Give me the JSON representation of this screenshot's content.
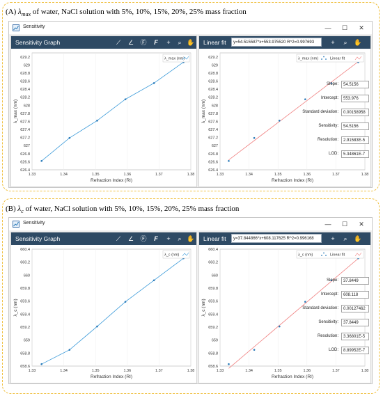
{
  "captions": {
    "a_prefix": "(A) ",
    "a_symbol": "λ",
    "a_sub": "max",
    "a_rest": " of water, NaCl solution with 5%, 10%, 15%, 20%, 25% mass fraction",
    "b_prefix": "(B) ",
    "b_symbol": "λ",
    "b_sub": "c",
    "b_rest": " of water, NaCl solution with 5%, 10%, 15%, 20%, 25% mass fraction"
  },
  "window": {
    "title": "Sensitivity",
    "minimize": "—",
    "maximize": "☐",
    "close": "✕"
  },
  "toolbar_icons": [
    "chart-line-icon",
    "chart-slope-icon",
    "function-f-icon",
    "font-f-icon",
    "crosshair-icon",
    "zoom-icon",
    "pan-hand-icon"
  ],
  "colors": {
    "header": "#2e4a64",
    "line": "#3a9ad9",
    "fit": "#f08080",
    "point": "#2a7ab8"
  },
  "chart_data": [
    {
      "type": "line",
      "panel": "A-left",
      "title": "Sensitivity Graph",
      "xlabel": "Refraction Index (RI)",
      "ylabel": "λ_max (nm)",
      "xlim": [
        1.33,
        1.38
      ],
      "ylim": [
        626.4,
        629.3
      ],
      "xticks": [
        "1.33",
        "1.34",
        "1.35",
        "1.36",
        "1.37",
        "1.38"
      ],
      "yticks": [
        "626.4",
        "626.6",
        "626.8",
        "627",
        "627.2",
        "627.4",
        "627.6",
        "627.8",
        "628",
        "628.2",
        "628.4",
        "628.6",
        "628.8",
        "629",
        "629.2"
      ],
      "legend": "λ_max (nm)",
      "x": [
        1.333,
        1.3418,
        1.3505,
        1.3594,
        1.3684,
        1.3777
      ],
      "y": [
        626.62,
        627.19,
        627.62,
        628.15,
        628.55,
        629.07
      ]
    },
    {
      "type": "scatter",
      "panel": "A-right",
      "title": "Linear fit",
      "equation": "y=54.515587*x+553.975520   R^2=0.997693",
      "xlabel": "Refraction Index (RI)",
      "ylabel": "λ_max (nm)",
      "xlim": [
        1.33,
        1.38
      ],
      "ylim": [
        626.4,
        629.3
      ],
      "xticks": [
        "1.33",
        "1.34",
        "1.35",
        "1.36",
        "1.37",
        "1.38"
      ],
      "yticks": [
        "626.4",
        "626.6",
        "626.8",
        "627",
        "627.2",
        "627.4",
        "627.6",
        "627.8",
        "628",
        "628.2",
        "628.4",
        "628.6",
        "628.8",
        "629",
        "629.2"
      ],
      "legend": [
        "λ_max (nm)",
        "Linear fit"
      ],
      "fit": {
        "slope": 54.515587,
        "intercept": 553.97552
      },
      "x": [
        1.333,
        1.3418,
        1.3505,
        1.3594,
        1.3684,
        1.3777
      ],
      "y": [
        626.62,
        627.19,
        627.62,
        628.15,
        628.55,
        629.07
      ],
      "stats": [
        {
          "label": "Slope:",
          "value": "54.5156"
        },
        {
          "label": "Intercept:",
          "value": "553.976"
        },
        {
          "label": "Standard deviation:",
          "value": "0.00158958"
        },
        {
          "label": "Sensitivity:",
          "value": "54.5156"
        },
        {
          "label": "Resolution:",
          "value": "2.91583E-5"
        },
        {
          "label": "LOD:",
          "value": "5.34861E-7"
        }
      ]
    },
    {
      "type": "line",
      "panel": "B-left",
      "title": "Sensitivity Graph",
      "xlabel": "Refraction Index (RI)",
      "ylabel": "λ_c (nm)",
      "xlim": [
        1.33,
        1.38
      ],
      "ylim": [
        658.6,
        660.4
      ],
      "xticks": [
        "1.33",
        "1.34",
        "1.35",
        "1.36",
        "1.37",
        "1.38"
      ],
      "yticks": [
        "658.6",
        "658.8",
        "659",
        "659.2",
        "659.4",
        "659.6",
        "659.8",
        "660",
        "660.2",
        "660.4"
      ],
      "legend": "λ_c (nm)",
      "x": [
        1.333,
        1.3418,
        1.3505,
        1.3594,
        1.3684,
        1.3777
      ],
      "y": [
        658.63,
        658.85,
        659.21,
        659.59,
        659.92,
        660.26
      ]
    },
    {
      "type": "scatter",
      "panel": "B-right",
      "title": "Linear fit",
      "equation": "y=37.844866*x+608.117625   R^2=0.996168",
      "xlabel": "Refraction Index (RI)",
      "ylabel": "λ_c (nm)",
      "xlim": [
        1.33,
        1.38
      ],
      "ylim": [
        658.6,
        660.4
      ],
      "xticks": [
        "1.33",
        "1.34",
        "1.35",
        "1.36",
        "1.37",
        "1.38"
      ],
      "yticks": [
        "658.6",
        "658.8",
        "659",
        "659.2",
        "659.4",
        "659.6",
        "659.8",
        "660",
        "660.2",
        "660.4"
      ],
      "legend": [
        "λ_c (nm)",
        "Linear fit"
      ],
      "fit": {
        "slope": 37.844866,
        "intercept": 608.117625
      },
      "x": [
        1.333,
        1.3418,
        1.3505,
        1.3594,
        1.3684,
        1.3777
      ],
      "y": [
        658.63,
        658.85,
        659.21,
        659.59,
        659.92,
        660.26
      ],
      "stats": [
        {
          "label": "Slope:",
          "value": "37.8449"
        },
        {
          "label": "Intercept:",
          "value": "608.118"
        },
        {
          "label": "Standard deviation:",
          "value": "0.00127462"
        },
        {
          "label": "Sensitivity:",
          "value": "37.8449"
        },
        {
          "label": "Resolution:",
          "value": "3.36801E-5"
        },
        {
          "label": "LOD:",
          "value": "8.89952E-7"
        }
      ]
    }
  ]
}
